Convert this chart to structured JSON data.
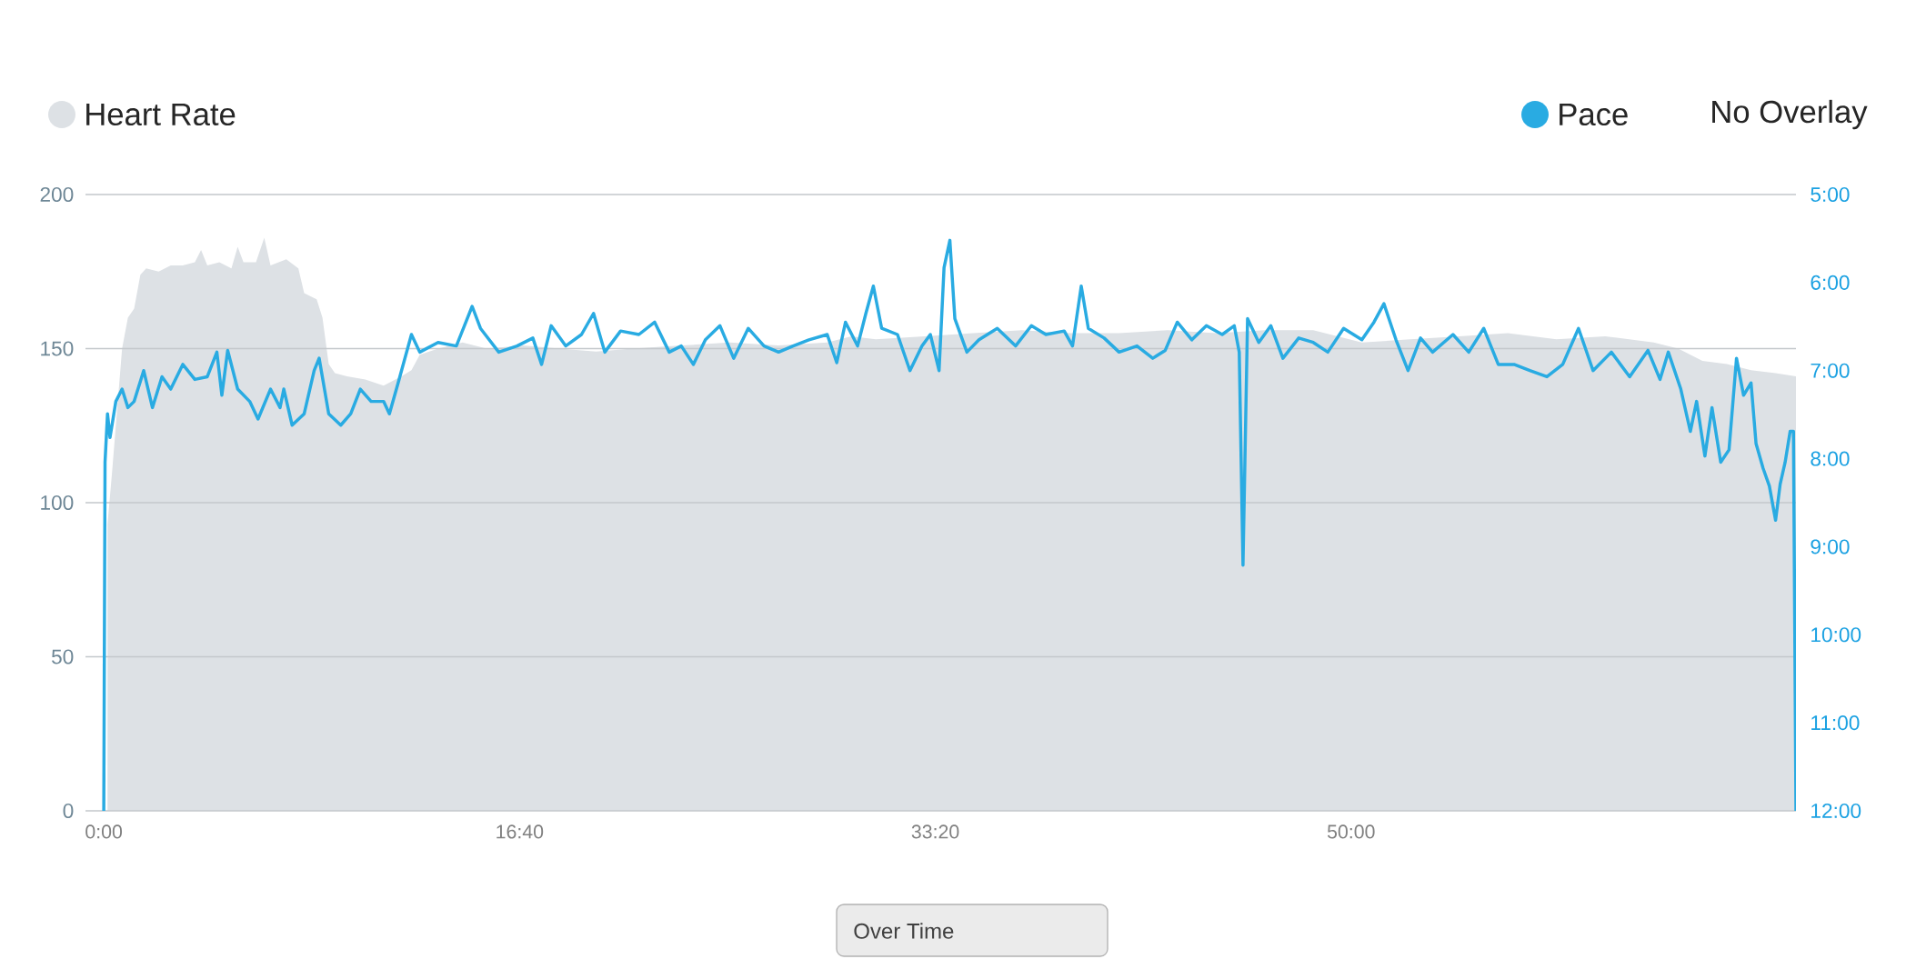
{
  "chart_data": {
    "type": "area",
    "xlim": [
      -44,
      4070
    ],
    "xticks": [
      {
        "value": 0,
        "label": "0:00"
      },
      {
        "value": 1000,
        "label": "16:40"
      },
      {
        "value": 2000,
        "label": "33:20"
      },
      {
        "value": 3000,
        "label": "50:00"
      }
    ],
    "ylim": [
      0,
      200
    ],
    "yticks": [
      0,
      50,
      100,
      150,
      200
    ],
    "y2lim": [
      12,
      5
    ],
    "y2ticks": [
      {
        "value": 5,
        "label": "5:00"
      },
      {
        "value": 6,
        "label": "6:00"
      },
      {
        "value": 7,
        "label": "7:00"
      },
      {
        "value": 8,
        "label": "8:00"
      },
      {
        "value": 9,
        "label": "9:00"
      },
      {
        "value": 10,
        "label": "10:00"
      },
      {
        "value": 11,
        "label": "11:00"
      },
      {
        "value": 12,
        "label": "12:00"
      }
    ],
    "grid": "y",
    "legend": "top",
    "annotations": [
      "No Overlay",
      "Over Time"
    ],
    "series": [
      {
        "name": "Heart Rate",
        "color": "#dde1e5",
        "x": [
          9,
          20,
          44,
          58,
          73,
          88,
          102,
          132,
          161,
          190,
          219,
          234,
          249,
          278,
          307,
          322,
          336,
          366,
          386,
          401,
          439,
          468,
          482,
          512,
          526,
          541,
          556,
          585,
          629,
          673,
          716,
          740,
          760,
          804,
          863,
          921,
          1009,
          1096,
          1184,
          1272,
          1389,
          1506,
          1623,
          1740,
          1798,
          1857,
          1974,
          2091,
          2208,
          2325,
          2442,
          2559,
          2676,
          2792,
          2909,
          3026,
          3143,
          3260,
          3377,
          3494,
          3611,
          3728,
          3787,
          3845,
          3904,
          3962,
          4021,
          4070
        ],
        "values": [
          93,
          110,
          150,
          160,
          163,
          174,
          176,
          175,
          177,
          177,
          178,
          182,
          177,
          178,
          176,
          183,
          178,
          178,
          186,
          177,
          179,
          176,
          168,
          166,
          160,
          145,
          142,
          141,
          140,
          138,
          141,
          143,
          148,
          150,
          152,
          150,
          151,
          150,
          149,
          150,
          151,
          152,
          151,
          152,
          154,
          153,
          154,
          155,
          156,
          155,
          155,
          156,
          155,
          156,
          156,
          152,
          153,
          154,
          155,
          153,
          154,
          152,
          150,
          146,
          145,
          143,
          142,
          141
        ]
      },
      {
        "name": "Pace",
        "type": "line",
        "axis": "y2",
        "color": "#29abe2",
        "x": [
          0,
          3,
          9,
          15,
          29,
          44,
          58,
          73,
          96,
          117,
          140,
          161,
          190,
          219,
          249,
          272,
          284,
          298,
          322,
          351,
          371,
          401,
          424,
          433,
          453,
          482,
          506,
          518,
          541,
          570,
          594,
          617,
          643,
          673,
          687,
          708,
          740,
          760,
          804,
          848,
          886,
          906,
          950,
          994,
          1032,
          1053,
          1076,
          1111,
          1149,
          1178,
          1205,
          1243,
          1287,
          1325,
          1360,
          1389,
          1418,
          1447,
          1482,
          1515,
          1550,
          1588,
          1623,
          1658,
          1696,
          1740,
          1763,
          1784,
          1813,
          1833,
          1851,
          1871,
          1909,
          1939,
          1968,
          1988,
          2009,
          2021,
          2035,
          2047,
          2076,
          2105,
          2149,
          2193,
          2231,
          2266,
          2310,
          2330,
          2351,
          2368,
          2406,
          2442,
          2485,
          2523,
          2553,
          2582,
          2617,
          2652,
          2690,
          2719,
          2731,
          2740,
          2751,
          2778,
          2807,
          2836,
          2874,
          2909,
          2944,
          2982,
          3026,
          3055,
          3079,
          3108,
          3137,
          3167,
          3196,
          3245,
          3283,
          3319,
          3354,
          3392,
          3430,
          3471,
          3509,
          3547,
          3582,
          3626,
          3670,
          3714,
          3743,
          3763,
          3793,
          3816,
          3831,
          3851,
          3868,
          3889,
          3909,
          3927,
          3944,
          3962,
          3974,
          3991,
          4006,
          4021,
          4032,
          4044,
          4056,
          4064,
          4070
        ],
        "values": [
          12.0,
          8.04,
          7.49,
          7.76,
          7.35,
          7.21,
          7.42,
          7.35,
          7.0,
          7.42,
          7.07,
          7.21,
          6.93,
          7.1,
          7.07,
          6.79,
          7.28,
          6.77,
          7.21,
          7.35,
          7.55,
          7.21,
          7.42,
          7.21,
          7.62,
          7.49,
          7.0,
          6.86,
          7.49,
          7.62,
          7.49,
          7.21,
          7.35,
          7.35,
          7.49,
          7.14,
          6.59,
          6.79,
          6.68,
          6.72,
          6.27,
          6.52,
          6.79,
          6.72,
          6.63,
          6.93,
          6.49,
          6.72,
          6.59,
          6.35,
          6.79,
          6.55,
          6.59,
          6.45,
          6.79,
          6.72,
          6.93,
          6.65,
          6.49,
          6.86,
          6.52,
          6.72,
          6.79,
          6.72,
          6.65,
          6.59,
          6.91,
          6.45,
          6.72,
          6.35,
          6.04,
          6.52,
          6.59,
          7.0,
          6.72,
          6.59,
          7.0,
          5.83,
          5.52,
          6.41,
          6.79,
          6.65,
          6.52,
          6.72,
          6.49,
          6.59,
          6.55,
          6.72,
          6.04,
          6.52,
          6.63,
          6.79,
          6.72,
          6.86,
          6.77,
          6.45,
          6.65,
          6.49,
          6.59,
          6.49,
          6.79,
          9.21,
          6.41,
          6.68,
          6.49,
          6.86,
          6.63,
          6.68,
          6.79,
          6.52,
          6.65,
          6.45,
          6.24,
          6.65,
          7.0,
          6.63,
          6.79,
          6.59,
          6.79,
          6.52,
          6.93,
          6.93,
          7.0,
          7.07,
          6.93,
          6.52,
          7.0,
          6.79,
          7.07,
          6.77,
          7.1,
          6.79,
          7.21,
          7.69,
          7.35,
          7.97,
          7.42,
          8.04,
          7.9,
          6.86,
          7.28,
          7.14,
          7.83,
          8.11,
          8.31,
          8.7,
          8.29,
          8.04,
          7.69,
          7.69,
          12.0
        ]
      }
    ]
  }
}
